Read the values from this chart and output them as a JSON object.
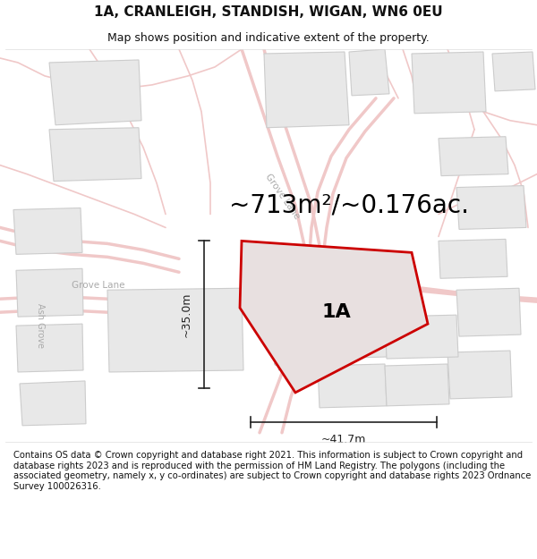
{
  "title_line1": "1A, CRANLEIGH, STANDISH, WIGAN, WN6 0EU",
  "title_line2": "Map shows position and indicative extent of the property.",
  "area_text": "~713m²/~0.176ac.",
  "label_1a": "1A",
  "dim_vertical": "~35.0m",
  "dim_horizontal": "~41.7m",
  "footer_text": "Contains OS data © Crown copyright and database right 2021. This information is subject to Crown copyright and database rights 2023 and is reproduced with the permission of HM Land Registry. The polygons (including the associated geometry, namely x, y co-ordinates) are subject to Crown copyright and database rights 2023 Ordnance Survey 100026316.",
  "bg_color": "#ffffff",
  "map_bg": "#ffffff",
  "road_outline_color": "#f0c8c8",
  "road_fill_color": "#ffffff",
  "building_fill": "#e8e8e8",
  "building_edge": "#cccccc",
  "property_fill": "#e8e0e0",
  "property_edge": "#cc0000",
  "dim_color": "#222222",
  "road_label_color": "#bbbbbb",
  "title_fontsize": 11,
  "subtitle_fontsize": 9,
  "area_fontsize": 20,
  "label_fontsize": 16,
  "footer_fontsize": 7.2,
  "road_lw": 1.2,
  "road_lw_thick": 2.5,
  "property_lw": 2.0
}
